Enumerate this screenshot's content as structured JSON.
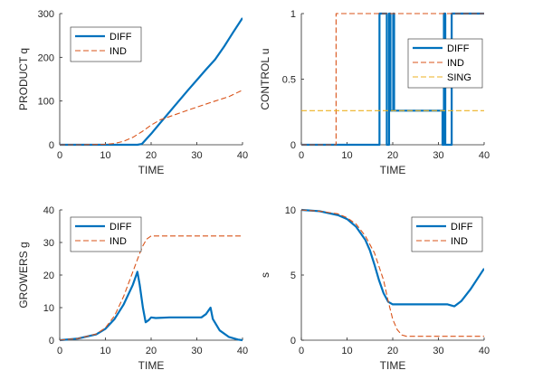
{
  "colors": {
    "diff": "#0072BD",
    "ind": "#D95319",
    "sing": "#EDB120",
    "axis": "#262626"
  },
  "chart_data": [
    {
      "type": "line",
      "id": "product",
      "xlabel": "TIME",
      "ylabel": "PRODUCT q",
      "xlim": [
        0,
        40
      ],
      "ylim": [
        0,
        300
      ],
      "xticks": [
        0,
        10,
        20,
        30,
        40
      ],
      "yticks": [
        0,
        100,
        200,
        300
      ],
      "legend_position": "top-left",
      "series": [
        {
          "name": "DIFF",
          "style": "solid",
          "color_key": "diff",
          "points": [
            [
              0,
              0
            ],
            [
              5,
              0
            ],
            [
              10,
              0
            ],
            [
              15,
              0
            ],
            [
              17,
              0
            ],
            [
              18,
              2
            ],
            [
              20,
              25
            ],
            [
              22,
              50
            ],
            [
              25,
              87
            ],
            [
              28,
              124
            ],
            [
              30,
              148
            ],
            [
              32,
              172
            ],
            [
              34,
              195
            ],
            [
              36,
              225
            ],
            [
              38,
              258
            ],
            [
              40,
              290
            ]
          ]
        },
        {
          "name": "IND",
          "style": "dashed",
          "color_key": "ind",
          "points": [
            [
              0,
              0
            ],
            [
              5,
              0
            ],
            [
              10,
              1
            ],
            [
              12,
              3
            ],
            [
              14,
              8
            ],
            [
              16,
              17
            ],
            [
              18,
              30
            ],
            [
              20,
              45
            ],
            [
              22,
              57
            ],
            [
              25,
              68
            ],
            [
              28,
              79
            ],
            [
              30,
              86
            ],
            [
              34,
              100
            ],
            [
              37,
              110
            ],
            [
              40,
              125
            ]
          ]
        }
      ]
    },
    {
      "type": "line",
      "id": "control",
      "xlabel": "TIME",
      "ylabel": "CONTROL u",
      "xlim": [
        0,
        40
      ],
      "ylim": [
        0,
        1
      ],
      "xticks": [
        0,
        10,
        20,
        30,
        40
      ],
      "yticks": [
        0,
        0.5,
        1
      ],
      "ytick_labels": [
        "0",
        "0.5",
        "1"
      ],
      "legend_position": "top-right",
      "series": [
        {
          "name": "DIFF",
          "style": "solid",
          "color_key": "diff",
          "points": [
            [
              0,
              0
            ],
            [
              17.1,
              0
            ],
            [
              17.1,
              1
            ],
            [
              18.7,
              1
            ],
            [
              18.7,
              0
            ],
            [
              19.2,
              0
            ],
            [
              19.2,
              1
            ],
            [
              19.5,
              1
            ],
            [
              19.5,
              0.26
            ],
            [
              20.1,
              0.26
            ],
            [
              20.1,
              1
            ],
            [
              20.3,
              1
            ],
            [
              20.3,
              0.26
            ],
            [
              30.9,
              0.26
            ],
            [
              30.9,
              0
            ],
            [
              31.2,
              0
            ],
            [
              31.2,
              1
            ],
            [
              31.5,
              1
            ],
            [
              31.5,
              0
            ],
            [
              32.9,
              0
            ],
            [
              32.9,
              1
            ],
            [
              40,
              1
            ]
          ]
        },
        {
          "name": "IND",
          "style": "dashed",
          "color_key": "ind",
          "points": [
            [
              0,
              0
            ],
            [
              7.6,
              0
            ],
            [
              7.6,
              1
            ],
            [
              40,
              1
            ]
          ]
        },
        {
          "name": "SING",
          "style": "dashed",
          "color_key": "sing",
          "points": [
            [
              0,
              0.26
            ],
            [
              40,
              0.26
            ]
          ]
        }
      ]
    },
    {
      "type": "line",
      "id": "growers",
      "xlabel": "TIME",
      "ylabel": "GROWERS g",
      "xlim": [
        0,
        40
      ],
      "ylim": [
        0,
        40
      ],
      "xticks": [
        0,
        10,
        20,
        30,
        40
      ],
      "yticks": [
        0,
        10,
        20,
        30,
        40
      ],
      "legend_position": "top-left",
      "series": [
        {
          "name": "DIFF",
          "style": "solid",
          "color_key": "diff",
          "points": [
            [
              0,
              0
            ],
            [
              4,
              0.5
            ],
            [
              8,
              1.8
            ],
            [
              10,
              3.5
            ],
            [
              12,
              6.5
            ],
            [
              14,
              11
            ],
            [
              16,
              17
            ],
            [
              17,
              21
            ],
            [
              17.5,
              17
            ],
            [
              18.2,
              10
            ],
            [
              18.8,
              5.5
            ],
            [
              19.5,
              6.2
            ],
            [
              20,
              7
            ],
            [
              21,
              6.8
            ],
            [
              24,
              7
            ],
            [
              28,
              7
            ],
            [
              31,
              7
            ],
            [
              32,
              8
            ],
            [
              33,
              10
            ],
            [
              33.5,
              6.5
            ],
            [
              35,
              3
            ],
            [
              37,
              1
            ],
            [
              39,
              0.2
            ],
            [
              40,
              0
            ]
          ]
        },
        {
          "name": "IND",
          "style": "dashed",
          "color_key": "ind",
          "points": [
            [
              0,
              0
            ],
            [
              4,
              0.5
            ],
            [
              8,
              1.9
            ],
            [
              10,
              3.8
            ],
            [
              12,
              7.5
            ],
            [
              14,
              13.5
            ],
            [
              16,
              21
            ],
            [
              18,
              28.5
            ],
            [
              19,
              31
            ],
            [
              20,
              32
            ],
            [
              21,
              32
            ],
            [
              25,
              32
            ],
            [
              30,
              32
            ],
            [
              40,
              32
            ]
          ]
        }
      ]
    },
    {
      "type": "line",
      "id": "s",
      "xlabel": "TIME",
      "ylabel": "s",
      "xlim": [
        0,
        40
      ],
      "ylim": [
        0,
        10
      ],
      "xticks": [
        0,
        10,
        20,
        30,
        40
      ],
      "yticks": [
        0,
        5,
        10
      ],
      "legend_position": "top-right",
      "series": [
        {
          "name": "DIFF",
          "style": "solid",
          "color_key": "diff",
          "points": [
            [
              0,
              10
            ],
            [
              4,
              9.9
            ],
            [
              8,
              9.6
            ],
            [
              10,
              9.3
            ],
            [
              12,
              8.7
            ],
            [
              14,
              7.7
            ],
            [
              15,
              6.9
            ],
            [
              16,
              5.8
            ],
            [
              17,
              4.6
            ],
            [
              18,
              3.6
            ],
            [
              19,
              2.95
            ],
            [
              20,
              2.75
            ],
            [
              22,
              2.75
            ],
            [
              26,
              2.75
            ],
            [
              30,
              2.75
            ],
            [
              32,
              2.75
            ],
            [
              33.5,
              2.6
            ],
            [
              35,
              3.0
            ],
            [
              37,
              3.9
            ],
            [
              40,
              5.5
            ]
          ]
        },
        {
          "name": "IND",
          "style": "dashed",
          "color_key": "ind",
          "points": [
            [
              0,
              10
            ],
            [
              4,
              9.9
            ],
            [
              8,
              9.7
            ],
            [
              10,
              9.4
            ],
            [
              12,
              8.9
            ],
            [
              14,
              8.0
            ],
            [
              16,
              6.7
            ],
            [
              18,
              4.6
            ],
            [
              19,
              3.0
            ],
            [
              20,
              1.6
            ],
            [
              21,
              0.8
            ],
            [
              22,
              0.4
            ],
            [
              23,
              0.3
            ],
            [
              25,
              0.3
            ],
            [
              40,
              0.3
            ]
          ]
        }
      ]
    }
  ]
}
